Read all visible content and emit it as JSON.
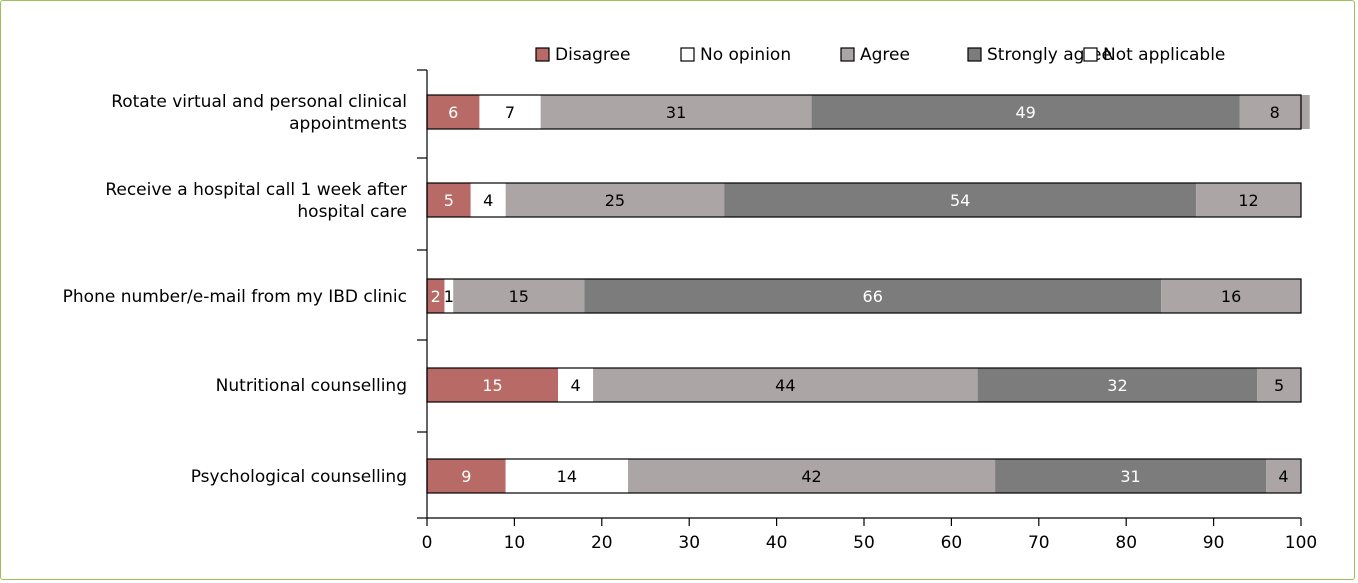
{
  "chart_data": {
    "type": "bar",
    "orientation": "horizontal",
    "stacked": true,
    "categories": [
      [
        "Rotate virtual and personal clinical",
        "appointments"
      ],
      [
        "Receive a hospital call 1 week after",
        "hospital care"
      ],
      [
        "Phone number/e-mail from my IBD clinic"
      ],
      [
        "Nutritional counselling"
      ],
      [
        "Psychological counselling"
      ]
    ],
    "series": [
      {
        "name": "Disagree",
        "color": "#b86a67",
        "label_color": "#ffffff",
        "values": [
          6,
          5,
          2,
          15,
          9
        ]
      },
      {
        "name": "No opinion",
        "color": "#ffffff",
        "label_color": "#000000",
        "values": [
          7,
          4,
          1,
          4,
          14
        ]
      },
      {
        "name": "Agree",
        "color": "#aba6a5",
        "label_color": "#000000",
        "values": [
          31,
          25,
          15,
          44,
          42
        ]
      },
      {
        "name": "Strongly agree",
        "color": "#7c7c7c",
        "label_color": "#ffffff",
        "values": [
          49,
          54,
          66,
          32,
          31
        ]
      },
      {
        "name": "Not applicable",
        "color": "#aba6a5",
        "label_color": "#000000",
        "values": [
          8,
          12,
          16,
          5,
          4
        ]
      }
    ],
    "legend": [
      {
        "name": "Disagree",
        "color": "#b86a67"
      },
      {
        "name": "No opinion",
        "color": "#ffffff"
      },
      {
        "name": "Agree",
        "color": "#aba6a5"
      },
      {
        "name": "Strongly agree",
        "color": "#7c7c7c"
      },
      {
        "name": "Not applicable",
        "color": "#ffffff"
      }
    ],
    "legend_position": "top",
    "xlim": [
      0,
      100
    ],
    "xticks": [
      0,
      10,
      20,
      30,
      40,
      50,
      60,
      70,
      80,
      90,
      100
    ],
    "grid": false
  }
}
